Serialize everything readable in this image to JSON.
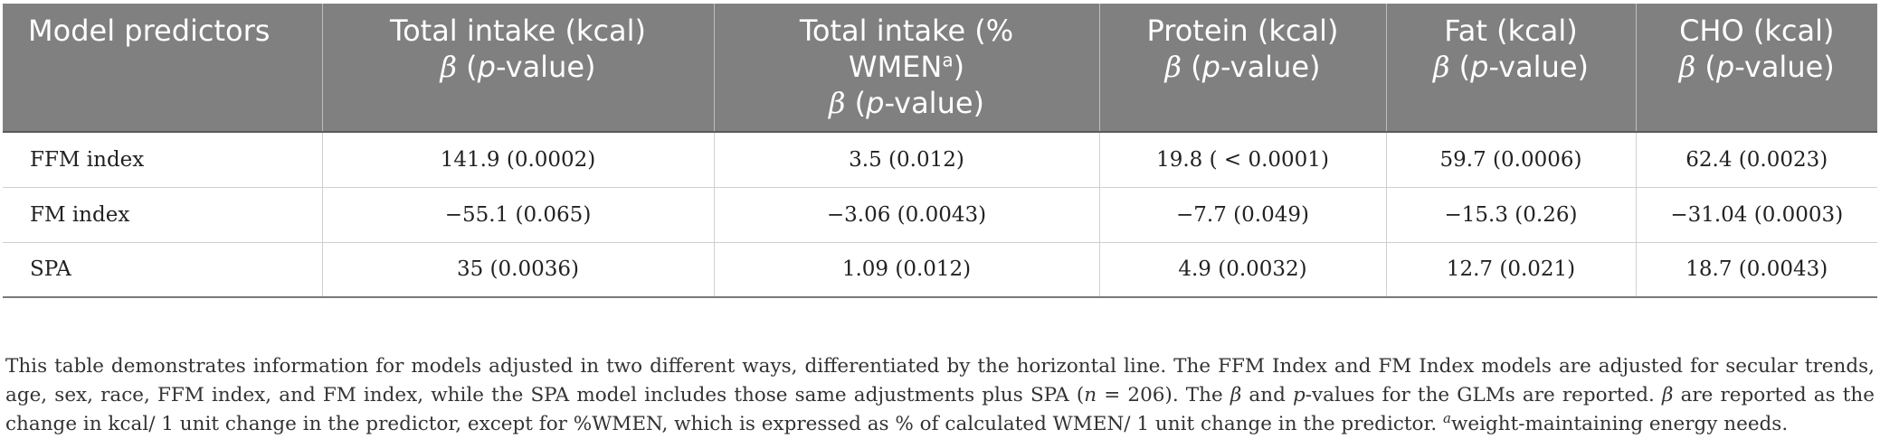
{
  "table": {
    "headers": [
      {
        "lines": [
          "Model predictors"
        ]
      },
      {
        "main": "Total intake (kcal)",
        "beta": "β",
        "p": "p",
        "suffix": "-value"
      },
      {
        "main_line1": "Total intake (%",
        "main_line2": "WMEN",
        "sup": "a",
        "close": ")",
        "beta": "β",
        "p": "p",
        "suffix": "-value"
      },
      {
        "main": "Protein (kcal)",
        "beta": "β",
        "p": "p",
        "suffix": "-value"
      },
      {
        "main": "Fat (kcal)",
        "beta": "β",
        "p": "p",
        "suffix": "-value"
      },
      {
        "main": "CHO (kcal)",
        "beta": "β",
        "p": "p",
        "suffix": "-value"
      }
    ],
    "rows": [
      {
        "predictor": "FFM index",
        "cells": [
          "141.9 (0.0002)",
          "3.5 (0.012)",
          "19.8 ( < 0.0001)",
          "59.7 (0.0006)",
          "62.4 (0.0023)"
        ]
      },
      {
        "predictor": "FM index",
        "cells": [
          "−55.1 (0.065)",
          "−3.06 (0.0043)",
          "−7.7 (0.049)",
          "−15.3 (0.26)",
          "−31.04 (0.0003)"
        ]
      },
      {
        "predictor": "SPA",
        "cells": [
          "35 (0.0036)",
          "1.09 (0.012)",
          "4.9 (0.0032)",
          "12.7 (0.021)",
          "18.7 (0.0043)"
        ]
      }
    ]
  },
  "footnote": {
    "part1": "This table demonstrates information for models adjusted in two different ways, differentiated by the horizontal line. The FFM Index and FM Index models are adjusted for secular trends, age, sex, race, FFM index, and FM index, while the SPA model includes those same adjustments plus SPA (",
    "n": "n",
    "part2": " = 206). The ",
    "beta1": "β",
    "part3": " and ",
    "p": "p",
    "part4": "-values for the GLMs are reported. ",
    "beta2": "β",
    "part5": " are reported as the change in kcal/ 1 unit change in the predictor, except for %WMEN, which is expressed as % of calculated WMEN/ 1 unit change in the predictor. ",
    "sup": "a",
    "part6": "weight-maintaining energy needs."
  }
}
